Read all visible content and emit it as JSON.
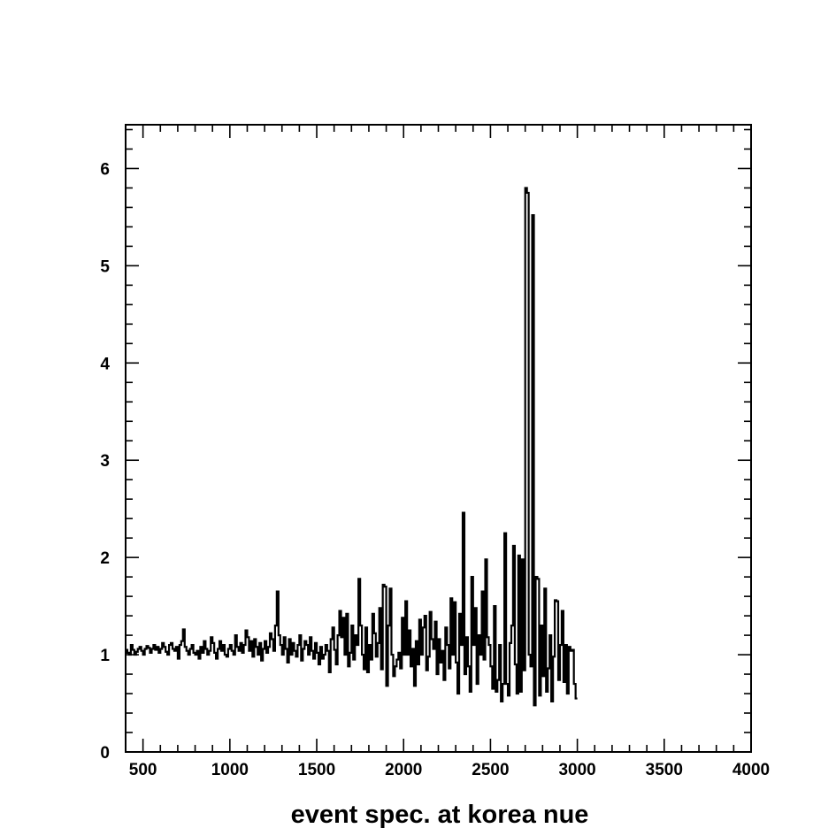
{
  "chart_data": {
    "type": "line",
    "title": "",
    "xlabel": "event spec. at korea nue",
    "ylabel": "",
    "xlim": [
      400,
      4000
    ],
    "ylim": [
      0,
      6.45
    ],
    "x_ticks": [
      500,
      1000,
      1500,
      2000,
      2500,
      3000,
      3500,
      4000
    ],
    "y_ticks": [
      0,
      1,
      2,
      3,
      4,
      5,
      6
    ],
    "grid": false,
    "legend": "none",
    "line_color": "#000000",
    "series": [
      {
        "bin_width": 10,
        "x_start": 400,
        "values": [
          1.05,
          1.02,
          1.0,
          1.1,
          1.05,
          1.0,
          1.03,
          1.06,
          1.08,
          1.04,
          1.0,
          1.06,
          1.09,
          1.07,
          1.02,
          1.06,
          1.1,
          1.05,
          1.08,
          1.02,
          1.06,
          1.12,
          1.08,
          1.03,
          1.0,
          1.1,
          1.12,
          1.06,
          1.04,
          1.08,
          0.96,
          1.1,
          1.14,
          1.26,
          1.08,
          1.04,
          1.0,
          1.06,
          1.1,
          1.02,
          1.0,
          1.04,
          0.96,
          1.08,
          1.02,
          1.14,
          1.06,
          1.0,
          1.04,
          1.18,
          1.12,
          1.02,
          0.96,
          1.06,
          1.14,
          1.04,
          1.1,
          1.0,
          0.98,
          1.06,
          1.1,
          1.04,
          1.0,
          1.2,
          1.08,
          1.04,
          1.12,
          1.02,
          1.1,
          1.25,
          1.18,
          1.04,
          1.14,
          0.98,
          1.16,
          1.08,
          1.0,
          1.12,
          0.94,
          1.06,
          1.14,
          1.02,
          1.08,
          1.22,
          1.16,
          1.04,
          1.3,
          1.65,
          1.2,
          1.1,
          1.0,
          1.18,
          1.06,
          0.92,
          1.16,
          1.0,
          1.12,
          1.04,
          0.98,
          1.1,
          1.2,
          0.94,
          1.06,
          1.14,
          1.1,
          1.0,
          1.18,
          1.04,
          0.96,
          1.12,
          1.02,
          0.9,
          1.08,
          0.96,
          1.0,
          1.1,
          1.04,
          0.82,
          1.16,
          1.28,
          1.05,
          0.9,
          1.2,
          1.45,
          1.18,
          1.38,
          1.0,
          1.42,
          0.88,
          1.02,
          1.3,
          0.95,
          1.2,
          1.1,
          1.78,
          1.3,
          1.0,
          0.85,
          1.28,
          0.82,
          1.1,
          0.95,
          1.42,
          1.22,
          0.98,
          1.12,
          1.48,
          0.85,
          1.72,
          1.7,
          0.68,
          1.3,
          1.68,
          1.0,
          0.78,
          0.88,
          0.95,
          1.02,
          0.86,
          1.38,
          1.0,
          1.55,
          1.0,
          1.25,
          0.88,
          1.06,
          0.68,
          1.14,
          0.9,
          1.36,
          1.0,
          1.28,
          1.4,
          0.84,
          0.98,
          1.44,
          1.16,
          1.06,
          1.34,
          0.8,
          1.16,
          0.92,
          1.04,
          0.74,
          1.28,
          1.1,
          0.86,
          1.58,
          1.0,
          1.54,
          0.92,
          0.6,
          1.42,
          1.1,
          2.46,
          0.8,
          1.18,
          0.88,
          0.62,
          1.8,
          1.1,
          1.48,
          0.7,
          1.2,
          1.0,
          1.65,
          0.95,
          1.98,
          1.18,
          1.1,
          0.88,
          0.65,
          1.5,
          0.62,
          0.74,
          1.1,
          0.52,
          0.7,
          2.25,
          0.7,
          0.58,
          1.12,
          1.3,
          2.12,
          0.9,
          0.6,
          2.02,
          0.62,
          1.98,
          0.84,
          5.8,
          5.75,
          1.0,
          0.88,
          5.52,
          0.48,
          1.8,
          1.78,
          0.58,
          1.3,
          0.78,
          1.68,
          0.62,
          0.86,
          1.2,
          0.52,
          0.98,
          1.56,
          1.55,
          0.74,
          1.1,
          1.45,
          0.72,
          1.1,
          0.6,
          1.08,
          1.04,
          1.05,
          0.7,
          0.55
        ]
      }
    ]
  }
}
